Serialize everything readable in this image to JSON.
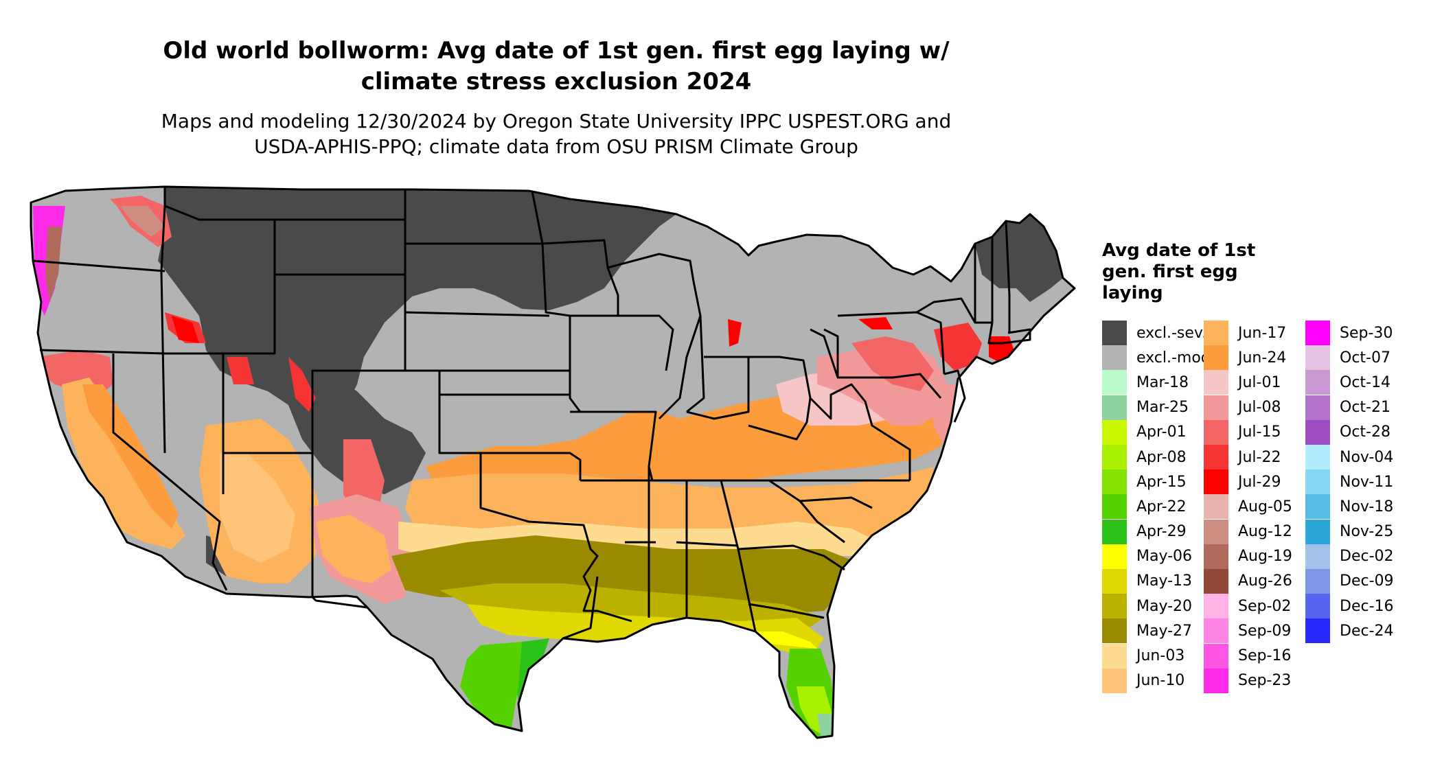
{
  "title": {
    "line1": "Old world bollworm: Avg date of 1st gen. first egg laying w/",
    "line2": "climate stress exclusion 2024"
  },
  "subtitle": {
    "line1": "Maps and modeling 12/30/2024 by Oregon State University IPPC USPEST.ORG and",
    "line2": "USDA-APHIS-PPQ; climate data from OSU PRISM Climate Group"
  },
  "legend": {
    "title_line1": "Avg date of 1st",
    "title_line2": "gen. first egg",
    "title_line3": "laying",
    "columns": [
      [
        {
          "label": "excl.-sev.",
          "color": "#4a4a4a"
        },
        {
          "label": "excl.-mod.",
          "color": "#b3b3b3"
        },
        {
          "label": "Mar-18",
          "color": "#b9fbc8"
        },
        {
          "label": "Mar-25",
          "color": "#8fd49e"
        },
        {
          "label": "Apr-01",
          "color": "#c8f700"
        },
        {
          "label": "Apr-08",
          "color": "#a8ef00"
        },
        {
          "label": "Apr-15",
          "color": "#83e200"
        },
        {
          "label": "Apr-22",
          "color": "#55d100"
        },
        {
          "label": "Apr-29",
          "color": "#2cc21a"
        },
        {
          "label": "May-06",
          "color": "#ffff00"
        },
        {
          "label": "May-13",
          "color": "#e0d800"
        },
        {
          "label": "May-20",
          "color": "#bdb100"
        },
        {
          "label": "May-27",
          "color": "#9a8a00"
        },
        {
          "label": "Jun-03",
          "color": "#fddb90"
        },
        {
          "label": "Jun-10",
          "color": "#fec479"
        }
      ],
      [
        {
          "label": "Jun-17",
          "color": "#fcb35c"
        },
        {
          "label": "Jun-24",
          "color": "#fc9c3c"
        },
        {
          "label": "Jul-01",
          "color": "#f6c6c6"
        },
        {
          "label": "Jul-08",
          "color": "#f29a9a"
        },
        {
          "label": "Jul-15",
          "color": "#f26666"
        },
        {
          "label": "Jul-22",
          "color": "#f53535"
        },
        {
          "label": "Jul-29",
          "color": "#ff0000"
        },
        {
          "label": "Aug-05",
          "color": "#e6b3ad"
        },
        {
          "label": "Aug-12",
          "color": "#cc8d82"
        },
        {
          "label": "Aug-19",
          "color": "#b06a5c"
        },
        {
          "label": "Aug-26",
          "color": "#944838"
        },
        {
          "label": "Sep-02",
          "color": "#ffb3e6"
        },
        {
          "label": "Sep-09",
          "color": "#ff85e5"
        },
        {
          "label": "Sep-16",
          "color": "#ff55e5"
        },
        {
          "label": "Sep-23",
          "color": "#ff2ae9"
        }
      ],
      [
        {
          "label": "Sep-30",
          "color": "#ff00ff"
        },
        {
          "label": "Oct-07",
          "color": "#e6c1e6"
        },
        {
          "label": "Oct-14",
          "color": "#cc99d6"
        },
        {
          "label": "Oct-21",
          "color": "#b373cc"
        },
        {
          "label": "Oct-28",
          "color": "#9c4dbf"
        },
        {
          "label": "Nov-04",
          "color": "#b3ecff"
        },
        {
          "label": "Nov-11",
          "color": "#85d6f2"
        },
        {
          "label": "Nov-18",
          "color": "#57bde6"
        },
        {
          "label": "Nov-25",
          "color": "#2aa6d9"
        },
        {
          "label": "Dec-02",
          "color": "#a3c2ea"
        },
        {
          "label": "Dec-09",
          "color": "#7d96e6"
        },
        {
          "label": "Dec-16",
          "color": "#5666f0"
        },
        {
          "label": "Dec-24",
          "color": "#2a2aff"
        }
      ]
    ]
  }
}
